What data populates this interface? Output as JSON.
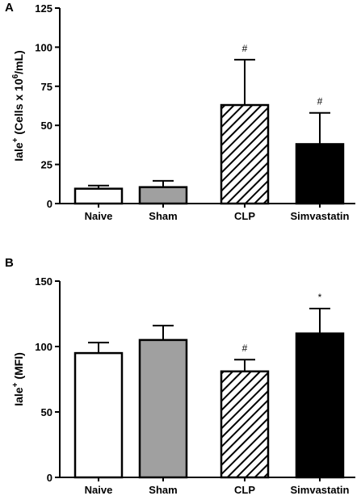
{
  "chart_data": [
    {
      "type": "bar",
      "panel_label": "A",
      "ylabel": {
        "pre": "Iale",
        "sup": "+",
        "mid": " (Cells x 10",
        "sup2": "6",
        "post": "/mL)"
      },
      "categories": [
        "Naive",
        "Sham",
        "CLP",
        "Simvastatin"
      ],
      "values": [
        9.5,
        10.5,
        63,
        38
      ],
      "errors": [
        2,
        4,
        29,
        20
      ],
      "annotations": [
        "",
        "",
        "#",
        "#"
      ],
      "ylim": [
        0,
        125
      ],
      "yticks": [
        0,
        25,
        50,
        75,
        100,
        125
      ],
      "yticklabels": [
        "0",
        "25",
        "50",
        "75",
        "100",
        "125"
      ],
      "bar_styles": [
        "white",
        "gray",
        "hatch",
        "black"
      ]
    },
    {
      "type": "bar",
      "panel_label": "B",
      "ylabel": {
        "pre": "Iale",
        "sup": "+",
        "mid": " (MFI)",
        "sup2": "",
        "post": ""
      },
      "categories": [
        "Naive",
        "Sham",
        "CLP",
        "Simvastatin"
      ],
      "values": [
        95,
        105,
        81,
        110
      ],
      "errors": [
        8,
        11,
        9,
        19
      ],
      "annotations": [
        "",
        "",
        "#",
        "*"
      ],
      "ylim": [
        0,
        150
      ],
      "yticks": [
        0,
        50,
        100,
        150
      ],
      "yticklabels": [
        "0",
        "50",
        "100",
        "150"
      ],
      "bar_styles": [
        "white",
        "gray",
        "hatch",
        "black"
      ]
    }
  ],
  "colors": {
    "gray": "#a0a0a0",
    "black": "#000000",
    "white": "#ffffff"
  }
}
